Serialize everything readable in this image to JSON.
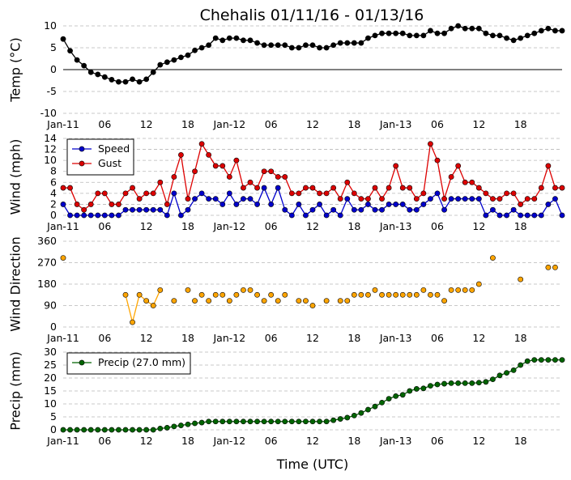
{
  "chart_data": {
    "type": "line",
    "title": "Chehalis 01/11/16 - 01/13/16",
    "xlabel": "Time (UTC)",
    "x_tick_labels": [
      "Jan-11",
      "06",
      "12",
      "18",
      "Jan-12",
      "06",
      "12",
      "18",
      "Jan-13",
      "06",
      "12",
      "18"
    ],
    "x_tick_hours": [
      0,
      6,
      12,
      18,
      24,
      30,
      36,
      42,
      48,
      54,
      60,
      66
    ],
    "x_range_hours": [
      0,
      72
    ],
    "grid": "horizontal dashed",
    "panels": [
      {
        "ylabel": "Temp (°C)",
        "ylim": [
          -10,
          10
        ],
        "yticks": [
          -10,
          -5,
          0,
          5,
          10
        ],
        "zero_line": true,
        "legend": null,
        "series": [
          {
            "color": "#000000",
            "hours": [
              0,
              1,
              2,
              3,
              4,
              5,
              6,
              7,
              8,
              9,
              10,
              11,
              12,
              13,
              14,
              15,
              16,
              17,
              18,
              19,
              20,
              21,
              22,
              23,
              24,
              25,
              26,
              27,
              28,
              29,
              30,
              31,
              32,
              33,
              34,
              35,
              36,
              37,
              38,
              39,
              40,
              41,
              42,
              43,
              44,
              45,
              46,
              47,
              48,
              49,
              50,
              51,
              52,
              53,
              54,
              55,
              56,
              57,
              58,
              59,
              60,
              61,
              62,
              63,
              64,
              65,
              66,
              67,
              68,
              69,
              70,
              71,
              72
            ],
            "values": [
              7,
              4.3,
              2.2,
              0.9,
              -0.6,
              -1.1,
              -1.7,
              -2.3,
              -2.8,
              -2.8,
              -2.2,
              -2.8,
              -2.2,
              -0.6,
              1.1,
              1.7,
              2.2,
              2.8,
              3.3,
              4.4,
              5,
              5.6,
              7.2,
              6.7,
              7.2,
              7.2,
              6.7,
              6.7,
              6.1,
              5.6,
              5.6,
              5.6,
              5.6,
              5,
              5,
              5.6,
              5.6,
              5,
              5,
              5.6,
              6.1,
              6.1,
              6.1,
              6.1,
              7.2,
              7.8,
              8.3,
              8.3,
              8.3,
              8.3,
              7.8,
              7.8,
              7.8,
              8.9,
              8.3,
              8.3,
              9.4,
              10,
              9.4,
              9.4,
              9.4,
              8.3,
              7.8,
              7.8,
              7.2,
              6.7,
              7.2,
              7.8,
              8.3,
              8.9,
              9.4,
              8.9,
              8.9
            ]
          }
        ]
      },
      {
        "ylabel": "Wind (mph)",
        "ylim": [
          0,
          14
        ],
        "yticks": [
          0,
          2,
          4,
          6,
          8,
          10,
          12,
          14
        ],
        "legend": "top-left",
        "series": [
          {
            "name": "Speed",
            "color": "#0000cc",
            "hours": [
              0,
              1,
              2,
              3,
              4,
              5,
              6,
              7,
              8,
              9,
              10,
              11,
              12,
              13,
              14,
              15,
              16,
              17,
              18,
              19,
              20,
              21,
              22,
              23,
              24,
              25,
              26,
              27,
              28,
              29,
              30,
              31,
              32,
              33,
              34,
              35,
              36,
              37,
              38,
              39,
              40,
              41,
              42,
              43,
              44,
              45,
              46,
              47,
              48,
              49,
              50,
              51,
              52,
              53,
              54,
              55,
              56,
              57,
              58,
              59,
              60,
              61,
              62,
              63,
              64,
              65,
              66,
              67,
              68,
              69,
              70,
              71,
              72
            ],
            "values": [
              2,
              0,
              0,
              0,
              0,
              0,
              0,
              0,
              0,
              1,
              1,
              1,
              1,
              1,
              1,
              0,
              4,
              0,
              1,
              3,
              4,
              3,
              3,
              2,
              4,
              2,
              3,
              3,
              2,
              5,
              2,
              5,
              1,
              0,
              2,
              0,
              1,
              2,
              0,
              1,
              0,
              3,
              1,
              1,
              2,
              1,
              1,
              2,
              2,
              2,
              1,
              1,
              2,
              3,
              4,
              1,
              3,
              3,
              3,
              3,
              3,
              0,
              1,
              0,
              0,
              1,
              0,
              0,
              0,
              0,
              2,
              3,
              0
            ]
          },
          {
            "name": "Gust",
            "color": "#dd0000",
            "hours": [
              0,
              1,
              2,
              3,
              4,
              5,
              6,
              7,
              8,
              9,
              10,
              11,
              12,
              13,
              14,
              15,
              16,
              17,
              18,
              19,
              20,
              21,
              22,
              23,
              24,
              25,
              26,
              27,
              28,
              29,
              30,
              31,
              32,
              33,
              34,
              35,
              36,
              37,
              38,
              39,
              40,
              41,
              42,
              43,
              44,
              45,
              46,
              47,
              48,
              49,
              50,
              51,
              52,
              53,
              54,
              55,
              56,
              57,
              58,
              59,
              60,
              61,
              62,
              63,
              64,
              65,
              66,
              67,
              68,
              69,
              70,
              71,
              72
            ],
            "values": [
              5,
              5,
              2,
              1,
              2,
              4,
              4,
              2,
              2,
              4,
              5,
              3,
              4,
              4,
              6,
              2,
              7,
              11,
              3,
              8,
              13,
              11,
              9,
              9,
              7,
              10,
              5,
              6,
              5,
              8,
              8,
              7,
              7,
              4,
              4,
              5,
              5,
              4,
              4,
              5,
              3,
              6,
              4,
              3,
              3,
              5,
              3,
              5,
              9,
              5,
              5,
              3,
              4,
              13,
              10,
              3,
              7,
              9,
              6,
              6,
              5,
              4,
              3,
              3,
              4,
              4,
              2,
              3,
              3,
              5,
              9,
              5,
              5
            ]
          }
        ]
      },
      {
        "ylabel": "Wind Direction",
        "ylim": [
          0,
          360
        ],
        "yticks": [
          0,
          90,
          180,
          270,
          360
        ],
        "legend": null,
        "series": [
          {
            "color": "#ffa500",
            "hours": [
              0,
              9,
              10,
              11,
              12,
              13,
              14,
              16,
              18,
              19,
              20,
              21,
              22,
              23,
              24,
              25,
              26,
              27,
              28,
              29,
              30,
              31,
              32,
              34,
              35,
              36,
              38,
              40,
              41,
              42,
              43,
              44,
              45,
              46,
              47,
              48,
              49,
              50,
              51,
              52,
              53,
              54,
              55,
              56,
              57,
              58,
              59,
              60,
              62,
              66,
              70,
              71
            ],
            "values": [
              290,
              135,
              20,
              135,
              110,
              90,
              155,
              110,
              155,
              110,
              135,
              110,
              135,
              135,
              110,
              135,
              155,
              155,
              135,
              110,
              135,
              110,
              135,
              110,
              110,
              90,
              110,
              110,
              110,
              135,
              135,
              135,
              155,
              135,
              135,
              135,
              135,
              135,
              135,
              155,
              135,
              135,
              110,
              155,
              155,
              155,
              155,
              180,
              290,
              200,
              250,
              250
            ],
            "connected_runs": [
              [
                9,
                14
              ]
            ]
          }
        ]
      },
      {
        "ylabel": "Precip (mm)",
        "ylim": [
          0,
          30
        ],
        "yticks": [
          0,
          5,
          10,
          15,
          20,
          25,
          30
        ],
        "legend": "top-left",
        "series": [
          {
            "name": "Precip (27.0 mm)",
            "color": "#006400",
            "hours": [
              0,
              1,
              2,
              3,
              4,
              5,
              6,
              7,
              8,
              9,
              10,
              11,
              12,
              13,
              14,
              15,
              16,
              17,
              18,
              19,
              20,
              21,
              22,
              23,
              24,
              25,
              26,
              27,
              28,
              29,
              30,
              31,
              32,
              33,
              34,
              35,
              36,
              37,
              38,
              39,
              40,
              41,
              42,
              43,
              44,
              45,
              46,
              47,
              48,
              49,
              50,
              51,
              52,
              53,
              54,
              55,
              56,
              57,
              58,
              59,
              60,
              61,
              62,
              63,
              64,
              65,
              66,
              67,
              68,
              69,
              70,
              71,
              72
            ],
            "values": [
              0,
              0,
              0,
              0,
              0,
              0,
              0,
              0,
              0,
              0,
              0,
              0,
              0,
              0,
              0.5,
              0.8,
              1.3,
              1.7,
              2.1,
              2.5,
              2.8,
              3.2,
              3.2,
              3.2,
              3.2,
              3.2,
              3.2,
              3.2,
              3.2,
              3.2,
              3.2,
              3.2,
              3.2,
              3.2,
              3.2,
              3.2,
              3.2,
              3.2,
              3.2,
              3.7,
              4.2,
              4.7,
              5.5,
              6.5,
              7.8,
              9.0,
              10.5,
              12.0,
              13.0,
              13.5,
              15.0,
              15.8,
              16.0,
              17.0,
              17.5,
              17.8,
              18.0,
              18.0,
              18.0,
              18.0,
              18.2,
              18.5,
              19.5,
              21.0,
              22.0,
              23.0,
              25.0,
              26.5,
              27.0,
              27.0,
              27.0,
              27.0,
              27.0
            ]
          }
        ]
      }
    ]
  }
}
